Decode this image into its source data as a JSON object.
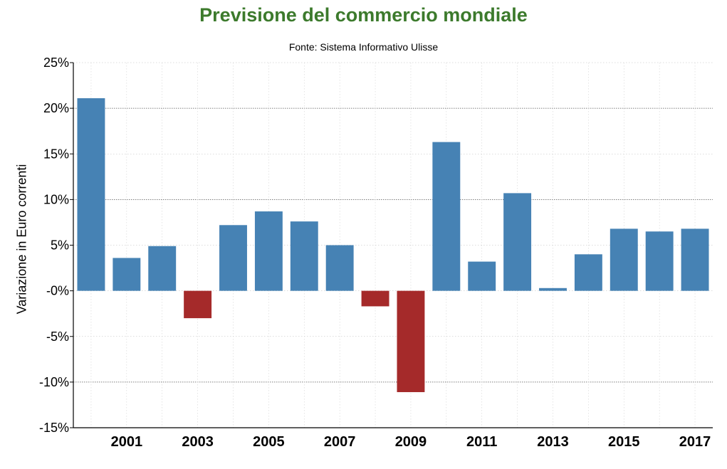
{
  "chart_data": {
    "type": "bar",
    "title": "Previsione del commercio mondiale",
    "subtitle": "Fonte: Sistema Informativo Ulisse",
    "xlabel": "",
    "ylabel": "Variazione in Euro correnti",
    "categories": [
      "2000",
      "2001",
      "2002",
      "2003",
      "2004",
      "2005",
      "2006",
      "2007",
      "2008",
      "2009",
      "2010",
      "2011",
      "2012",
      "2013",
      "2014",
      "2015",
      "2016",
      "2017"
    ],
    "values": [
      21.1,
      3.6,
      4.9,
      -3.0,
      7.2,
      8.7,
      7.6,
      5.0,
      -1.7,
      -11.1,
      16.3,
      3.2,
      10.7,
      0.3,
      4.0,
      6.8,
      6.5,
      6.8
    ],
    "x_tick_labels": [
      "2001",
      "2003",
      "2005",
      "2007",
      "2009",
      "2011",
      "2013",
      "2015",
      "2017"
    ],
    "y_ticks": [
      25,
      20,
      15,
      10,
      5,
      0,
      -5,
      -10,
      -15
    ],
    "y_tick_labels": [
      "25%",
      "20%",
      "15%",
      "10%",
      "5%",
      "-0%",
      "-5%",
      "-10%",
      "-15%"
    ],
    "ylim": [
      -15,
      25
    ],
    "grid": true,
    "legend": "none",
    "colors": {
      "positive": "#4682b4",
      "negative": "#a52a2a",
      "title": "#3c7a2c"
    }
  }
}
